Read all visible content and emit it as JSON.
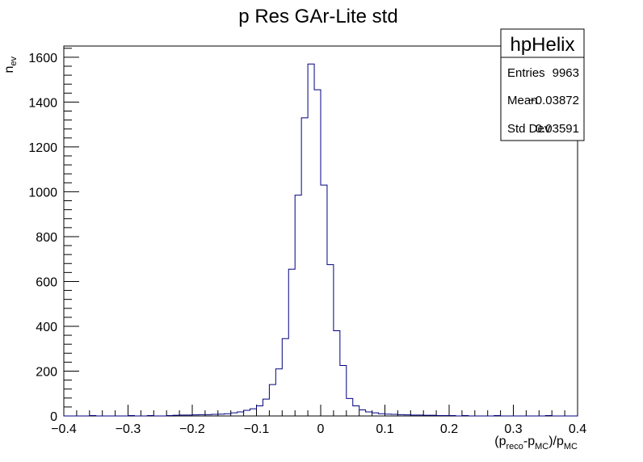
{
  "chart_data": {
    "type": "bar",
    "title": "p Res GAr-Lite std",
    "xlabel": "(p_reco-p_MC)/p_MC",
    "ylabel": "n_ev",
    "xlim": [
      -0.4,
      0.4
    ],
    "ylim": [
      0,
      1650
    ],
    "x_ticks": [
      "−0.4",
      "−0.3",
      "−0.2",
      "−0.1",
      "0",
      "0.1",
      "0.2",
      "0.3",
      "0.4"
    ],
    "y_ticks": [
      "0",
      "200",
      "400",
      "600",
      "800",
      "1000",
      "1200",
      "1400",
      "1600"
    ],
    "grid": false,
    "histogram": {
      "bin_width": 0.01,
      "bins": [
        {
          "x": -0.36,
          "v": 2
        },
        {
          "x": -0.3,
          "v": 2
        },
        {
          "x": -0.27,
          "v": 2
        },
        {
          "x": -0.24,
          "v": 2
        },
        {
          "x": -0.23,
          "v": 3
        },
        {
          "x": -0.22,
          "v": 4
        },
        {
          "x": -0.21,
          "v": 4
        },
        {
          "x": -0.2,
          "v": 5
        },
        {
          "x": -0.19,
          "v": 6
        },
        {
          "x": -0.18,
          "v": 6
        },
        {
          "x": -0.17,
          "v": 7
        },
        {
          "x": -0.16,
          "v": 8
        },
        {
          "x": -0.15,
          "v": 10
        },
        {
          "x": -0.14,
          "v": 14
        },
        {
          "x": -0.13,
          "v": 18
        },
        {
          "x": -0.12,
          "v": 25
        },
        {
          "x": -0.11,
          "v": 32
        },
        {
          "x": -0.1,
          "v": 45
        },
        {
          "x": -0.09,
          "v": 75
        },
        {
          "x": -0.08,
          "v": 140
        },
        {
          "x": -0.07,
          "v": 210
        },
        {
          "x": -0.06,
          "v": 345
        },
        {
          "x": -0.05,
          "v": 655
        },
        {
          "x": -0.04,
          "v": 985
        },
        {
          "x": -0.03,
          "v": 1330
        },
        {
          "x": -0.02,
          "v": 1570
        },
        {
          "x": -0.01,
          "v": 1455
        },
        {
          "x": 0.0,
          "v": 1030
        },
        {
          "x": 0.01,
          "v": 675
        },
        {
          "x": 0.02,
          "v": 380
        },
        {
          "x": 0.03,
          "v": 225
        },
        {
          "x": 0.04,
          "v": 78
        },
        {
          "x": 0.05,
          "v": 45
        },
        {
          "x": 0.06,
          "v": 27
        },
        {
          "x": 0.07,
          "v": 18
        },
        {
          "x": 0.08,
          "v": 14
        },
        {
          "x": 0.09,
          "v": 10
        },
        {
          "x": 0.1,
          "v": 8
        },
        {
          "x": 0.11,
          "v": 7
        },
        {
          "x": 0.12,
          "v": 6
        },
        {
          "x": 0.13,
          "v": 5
        },
        {
          "x": 0.14,
          "v": 4
        },
        {
          "x": 0.15,
          "v": 4
        },
        {
          "x": 0.16,
          "v": 3
        },
        {
          "x": 0.17,
          "v": 3
        },
        {
          "x": 0.18,
          "v": 2
        },
        {
          "x": 0.19,
          "v": 2
        },
        {
          "x": 0.2,
          "v": 2
        },
        {
          "x": 0.22,
          "v": 2
        },
        {
          "x": 0.27,
          "v": 2
        },
        {
          "x": 0.35,
          "v": 2
        }
      ]
    },
    "stats_box": {
      "name": "hpHelix",
      "entries_label": "Entries",
      "entries": "9963",
      "mean_label": "Mean",
      "mean": "−0.03872",
      "stddev_label": "Std Dev",
      "stddev": "0.03591"
    },
    "colors": {
      "line": "#000080",
      "axis": "#000000",
      "background": "#ffffff"
    }
  }
}
